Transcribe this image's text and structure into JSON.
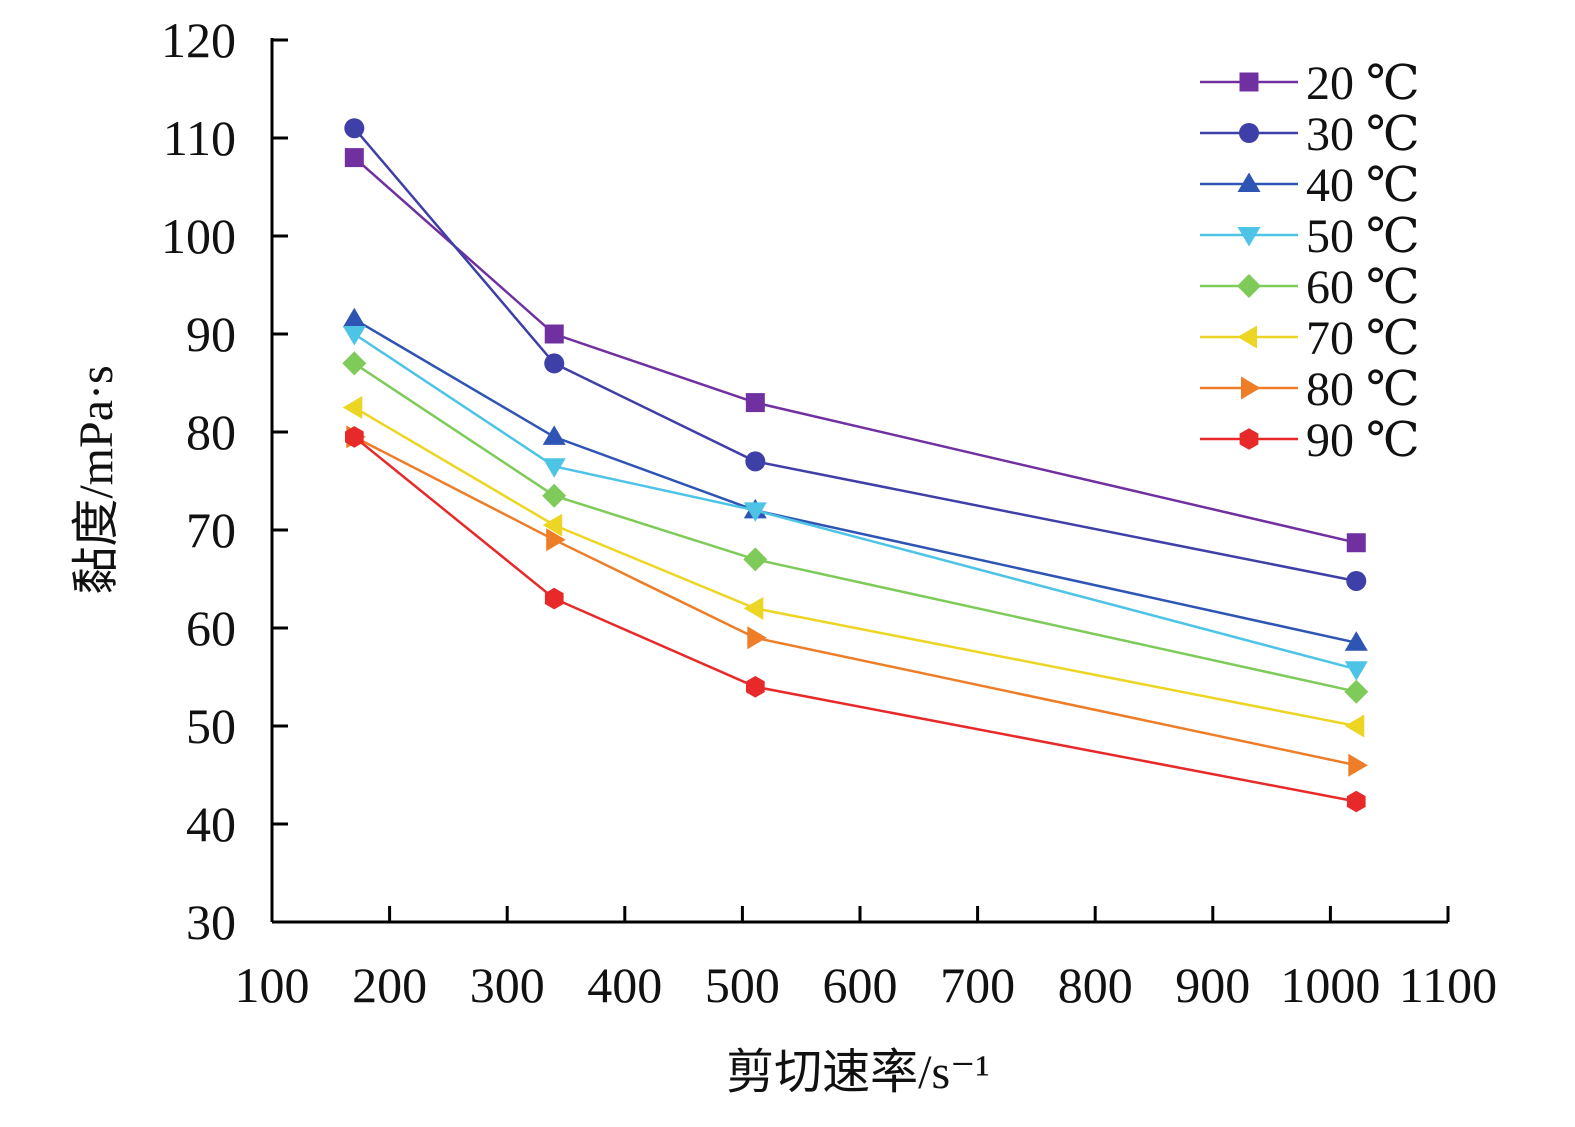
{
  "chart_data": {
    "type": "line",
    "title": "",
    "xlabel": "剪切速率/s⁻¹",
    "ylabel": "黏度/mPa·s",
    "xlim": [
      100,
      1100
    ],
    "ylim": [
      30,
      120
    ],
    "xticks": [
      100,
      200,
      300,
      400,
      500,
      600,
      700,
      800,
      900,
      1000,
      1100
    ],
    "yticks": [
      30,
      40,
      50,
      60,
      70,
      80,
      90,
      100,
      110,
      120
    ],
    "x_tick_labels": [
      "100",
      "200",
      "300",
      "400",
      "500",
      "600",
      "700",
      "800",
      "900",
      "1000",
      "1100"
    ],
    "y_tick_labels": [
      "30",
      "40",
      "50",
      "60",
      "70",
      "80",
      "90",
      "100",
      "110",
      "120"
    ],
    "grid": false,
    "legend_position": "top-right",
    "x": [
      170,
      340,
      511,
      1022
    ],
    "series": [
      {
        "name": "20 ℃",
        "color": "#7030A0",
        "marker": "square",
        "values": [
          108,
          90,
          83,
          68.7
        ]
      },
      {
        "name": "30 ℃",
        "color": "#3F3FA8",
        "marker": "circle",
        "values": [
          111,
          87,
          77,
          64.8
        ]
      },
      {
        "name": "40 ℃",
        "color": "#2F55B4",
        "marker": "triangle-up",
        "values": [
          91.5,
          79.5,
          72,
          58.5
        ]
      },
      {
        "name": "50 ℃",
        "color": "#4DC4E6",
        "marker": "triangle-down",
        "values": [
          90,
          76.5,
          72,
          55.8
        ]
      },
      {
        "name": "60 ℃",
        "color": "#7FCB5A",
        "marker": "diamond",
        "values": [
          87,
          73.5,
          67,
          53.5
        ]
      },
      {
        "name": "70 ℃",
        "color": "#EDD524",
        "marker": "triangle-left",
        "values": [
          82.5,
          70.5,
          62,
          50
        ]
      },
      {
        "name": "80 ℃",
        "color": "#EE7D28",
        "marker": "triangle-right",
        "values": [
          79.5,
          69,
          59,
          46
        ]
      },
      {
        "name": "90 ℃",
        "color": "#E8292A",
        "marker": "hexagon",
        "values": [
          79.5,
          63,
          54,
          42.3
        ]
      }
    ]
  }
}
